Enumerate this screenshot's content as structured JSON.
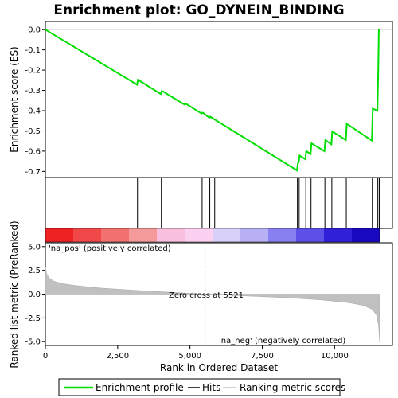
{
  "chart_data": {
    "type": "line",
    "title": "Enrichment plot: GO_DYNEIN_BINDING",
    "top_panel": {
      "ylabel": "Enrichment score (ES)",
      "ylim": [
        -0.73,
        0.04
      ],
      "yticks": [
        0.0,
        -0.1,
        -0.2,
        -0.3,
        -0.4,
        -0.5,
        -0.6,
        -0.7
      ],
      "ytick_labels": [
        "0.0",
        "-0.1",
        "-0.2",
        "-0.3",
        "-0.4",
        "-0.5",
        "-0.6",
        "-0.7"
      ],
      "series": [
        {
          "name": "Enrichment profile",
          "color": "#00dd00",
          "x": [
            0,
            3170,
            3200,
            3990,
            4030,
            4810,
            4850,
            5400,
            5440,
            5670,
            5700,
            5840,
            5870,
            8700,
            8730,
            8760,
            8790,
            8990,
            9020,
            9170,
            9200,
            9650,
            9680,
            9890,
            9920,
            10390,
            10420,
            11290,
            11320,
            11480,
            11510,
            11530,
            11560
          ],
          "y": [
            0.0,
            -0.272,
            -0.248,
            -0.318,
            -0.302,
            -0.37,
            -0.365,
            -0.414,
            -0.41,
            -0.435,
            -0.43,
            -0.443,
            -0.445,
            -0.695,
            -0.66,
            -0.655,
            -0.622,
            -0.64,
            -0.6,
            -0.614,
            -0.562,
            -0.6,
            -0.545,
            -0.566,
            -0.503,
            -0.545,
            -0.465,
            -0.548,
            -0.39,
            -0.4,
            -0.205,
            0.0,
            0.0
          ]
        }
      ],
      "hits": [
        3185,
        4010,
        4830,
        5420,
        5685,
        5855,
        8715,
        8775,
        9005,
        9185,
        9665,
        9905,
        10405,
        11305,
        11495,
        11545
      ]
    },
    "bottom_panel": {
      "ylabel": "Ranked list metric (PreRanked)",
      "xlabel": "Rank in Ordered Dataset",
      "xlim": [
        0,
        12000
      ],
      "xticks": [
        0,
        2500,
        5000,
        7500,
        10000
      ],
      "xtick_labels": [
        "0",
        "2,500",
        "5,000",
        "7,500",
        "10,000"
      ],
      "ylim": [
        -5.4,
        5.4
      ],
      "yticks": [
        5.0,
        2.5,
        0.0,
        -2.5,
        -5.0
      ],
      "ytick_labels": [
        "5.0",
        "2.5",
        "0.0",
        "-2.5",
        "-5.0"
      ],
      "metric_profile": {
        "x": [
          0,
          50,
          150,
          300,
          600,
          1000,
          1500,
          2000,
          3000,
          4000,
          5521,
          7000,
          8500,
          9500,
          10500,
          11000,
          11300,
          11450,
          11520,
          11560
        ],
        "y": [
          2.8,
          2.1,
          1.65,
          1.35,
          1.1,
          0.92,
          0.75,
          0.62,
          0.42,
          0.25,
          0.0,
          -0.2,
          -0.4,
          -0.6,
          -0.9,
          -1.2,
          -1.6,
          -2.2,
          -3.3,
          -5.1
        ]
      },
      "zero_cross_label": "Zero cross at 5521",
      "zero_cross": 5521,
      "pos_label": "'na_pos' (positively correlated)",
      "neg_label": "'na_neg' (negatively correlated)",
      "pos_label_color": "#cc0000",
      "neg_label_color": "#0000cc"
    },
    "legend": {
      "placement": "bottom",
      "items": [
        {
          "label": "Enrichment profile",
          "color": "#00dd00"
        },
        {
          "label": "Hits",
          "color": "#000000"
        },
        {
          "label": "Ranking metric scores",
          "color": "#c0c0c0"
        }
      ]
    },
    "heatbar_colors": [
      "#ee2222",
      "#f04848",
      "#f27070",
      "#f59a9a",
      "#f8c0dd",
      "#fbd0f0",
      "#d8d0f8",
      "#b8b0f4",
      "#8880f0",
      "#5c50e8",
      "#3020d8",
      "#1808c0"
    ],
    "total_ranks": 11560
  }
}
